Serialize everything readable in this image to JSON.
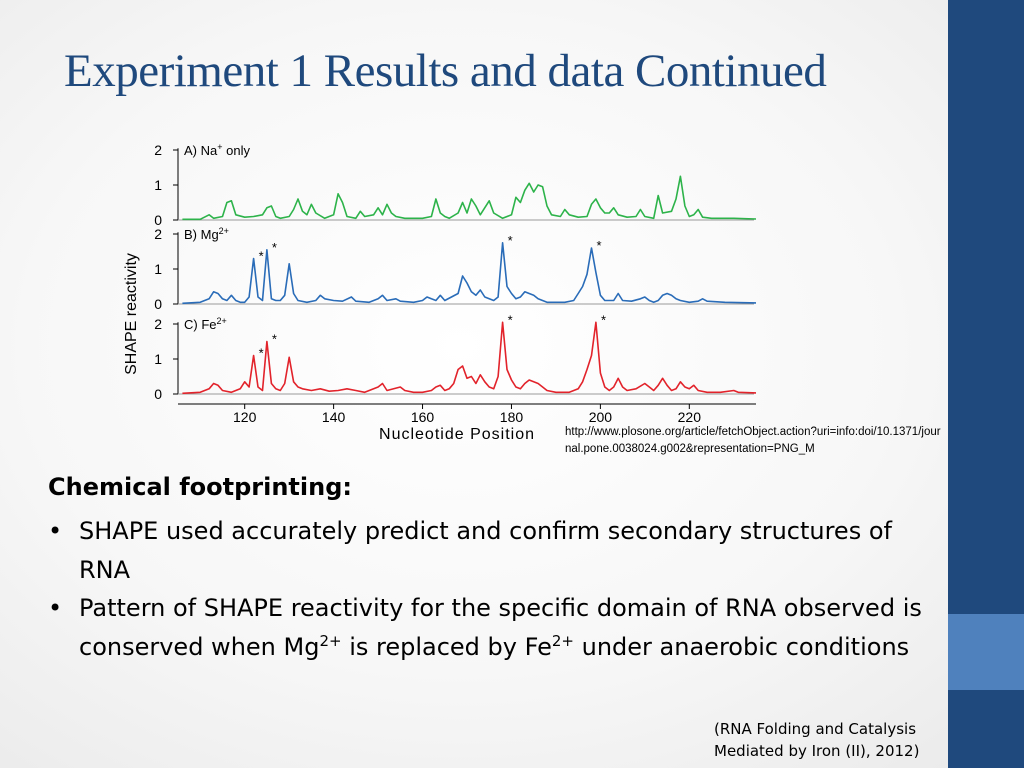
{
  "slide": {
    "title": "Experiment 1 Results and data Continued",
    "source_url": "http://www.plosone.org/article/fetchObject.action?uri=info:doi/10.1371/journal.pone.0038024.g002&representation=PNG_M",
    "heading": "Chemical footprinting:",
    "bullet1": "SHAPE used accurately predict and confirm secondary structures of RNA",
    "bullet2_part1": "Pattern of SHAPE reactivity for the specific domain of RNA observed is conserved when Mg",
    "bullet2_sup1": "2+",
    "bullet2_part2": " is replaced by Fe",
    "bullet2_sup2": "2+",
    "bullet2_part3": " under anaerobic conditions",
    "citation": "(RNA Folding and Catalysis Mediated by Iron (II), 2012)"
  },
  "colors": {
    "title": "#1f497d",
    "sidebar_dark": "#1f497d",
    "sidebar_light": "#4f81bd",
    "na_trace": "#2db34a",
    "mg_trace": "#2a6cb8",
    "fe_trace": "#e2232b"
  },
  "chart_data": {
    "type": "line",
    "xlabel": "Nucleotide Position",
    "ylabel": "SHAPE reactivity",
    "xlim": [
      105,
      235
    ],
    "x_ticks": [
      120,
      140,
      160,
      180,
      200,
      220
    ],
    "ylim": [
      0,
      2
    ],
    "y_ticks": [
      0,
      1,
      2
    ],
    "panels": [
      {
        "label_prefix": "A) Na",
        "label_sup": "+",
        "label_suffix": " only",
        "color": "#2db34a",
        "points": [
          [
            106,
            0.02
          ],
          [
            110,
            0.02
          ],
          [
            112,
            0.15
          ],
          [
            113,
            0.05
          ],
          [
            115,
            0.1
          ],
          [
            116,
            0.5
          ],
          [
            117,
            0.55
          ],
          [
            118,
            0.15
          ],
          [
            120,
            0.08
          ],
          [
            122,
            0.1
          ],
          [
            124,
            0.15
          ],
          [
            125,
            0.35
          ],
          [
            126,
            0.4
          ],
          [
            127,
            0.1
          ],
          [
            128,
            0.05
          ],
          [
            130,
            0.1
          ],
          [
            131,
            0.3
          ],
          [
            132,
            0.6
          ],
          [
            133,
            0.25
          ],
          [
            134,
            0.15
          ],
          [
            135,
            0.45
          ],
          [
            136,
            0.2
          ],
          [
            138,
            0.05
          ],
          [
            140,
            0.15
          ],
          [
            141,
            0.75
          ],
          [
            142,
            0.5
          ],
          [
            143,
            0.1
          ],
          [
            145,
            0.05
          ],
          [
            146,
            0.25
          ],
          [
            147,
            0.1
          ],
          [
            149,
            0.15
          ],
          [
            150,
            0.35
          ],
          [
            151,
            0.15
          ],
          [
            152,
            0.45
          ],
          [
            153,
            0.2
          ],
          [
            154,
            0.1
          ],
          [
            156,
            0.05
          ],
          [
            160,
            0.05
          ],
          [
            162,
            0.1
          ],
          [
            163,
            0.6
          ],
          [
            164,
            0.2
          ],
          [
            165,
            0.1
          ],
          [
            166,
            0.05
          ],
          [
            168,
            0.2
          ],
          [
            169,
            0.5
          ],
          [
            170,
            0.2
          ],
          [
            171,
            0.6
          ],
          [
            172,
            0.4
          ],
          [
            173,
            0.15
          ],
          [
            175,
            0.55
          ],
          [
            176,
            0.2
          ],
          [
            178,
            0.05
          ],
          [
            180,
            0.15
          ],
          [
            181,
            0.65
          ],
          [
            182,
            0.5
          ],
          [
            183,
            0.85
          ],
          [
            184,
            1.05
          ],
          [
            185,
            0.8
          ],
          [
            186,
            1.0
          ],
          [
            187,
            0.95
          ],
          [
            188,
            0.4
          ],
          [
            189,
            0.15
          ],
          [
            191,
            0.1
          ],
          [
            192,
            0.3
          ],
          [
            193,
            0.15
          ],
          [
            195,
            0.08
          ],
          [
            197,
            0.1
          ],
          [
            198,
            0.45
          ],
          [
            199,
            0.6
          ],
          [
            200,
            0.35
          ],
          [
            201,
            0.2
          ],
          [
            202,
            0.2
          ],
          [
            203,
            0.35
          ],
          [
            204,
            0.15
          ],
          [
            206,
            0.08
          ],
          [
            208,
            0.1
          ],
          [
            209,
            0.3
          ],
          [
            210,
            0.1
          ],
          [
            212,
            0.05
          ],
          [
            213,
            0.7
          ],
          [
            214,
            0.2
          ],
          [
            216,
            0.25
          ],
          [
            217,
            0.6
          ],
          [
            218,
            1.25
          ],
          [
            219,
            0.4
          ],
          [
            220,
            0.1
          ],
          [
            221,
            0.15
          ],
          [
            222,
            0.3
          ],
          [
            223,
            0.08
          ],
          [
            225,
            0.05
          ],
          [
            230,
            0.05
          ],
          [
            235,
            0.03
          ]
        ]
      },
      {
        "label_prefix": "B) Mg",
        "label_sup": "2+",
        "label_suffix": "",
        "color": "#2a6cb8",
        "points": [
          [
            106,
            0.02
          ],
          [
            110,
            0.05
          ],
          [
            112,
            0.15
          ],
          [
            113,
            0.35
          ],
          [
            114,
            0.3
          ],
          [
            115,
            0.15
          ],
          [
            116,
            0.1
          ],
          [
            117,
            0.25
          ],
          [
            118,
            0.1
          ],
          [
            119,
            0.05
          ],
          [
            120,
            0.05
          ],
          [
            121,
            0.2
          ],
          [
            122,
            1.3
          ],
          [
            123,
            0.2
          ],
          [
            124,
            0.1
          ],
          [
            125,
            1.55
          ],
          [
            126,
            0.15
          ],
          [
            127,
            0.1
          ],
          [
            128,
            0.1
          ],
          [
            129,
            0.25
          ],
          [
            130,
            1.15
          ],
          [
            131,
            0.3
          ],
          [
            132,
            0.1
          ],
          [
            134,
            0.05
          ],
          [
            136,
            0.1
          ],
          [
            137,
            0.25
          ],
          [
            138,
            0.15
          ],
          [
            140,
            0.1
          ],
          [
            142,
            0.08
          ],
          [
            144,
            0.2
          ],
          [
            145,
            0.08
          ],
          [
            148,
            0.05
          ],
          [
            150,
            0.15
          ],
          [
            151,
            0.25
          ],
          [
            152,
            0.1
          ],
          [
            154,
            0.15
          ],
          [
            155,
            0.08
          ],
          [
            158,
            0.05
          ],
          [
            160,
            0.1
          ],
          [
            161,
            0.2
          ],
          [
            162,
            0.15
          ],
          [
            163,
            0.1
          ],
          [
            164,
            0.25
          ],
          [
            165,
            0.1
          ],
          [
            168,
            0.3
          ],
          [
            169,
            0.8
          ],
          [
            170,
            0.6
          ],
          [
            171,
            0.35
          ],
          [
            172,
            0.25
          ],
          [
            173,
            0.4
          ],
          [
            174,
            0.2
          ],
          [
            176,
            0.1
          ],
          [
            177,
            0.2
          ],
          [
            178,
            1.75
          ],
          [
            179,
            0.5
          ],
          [
            180,
            0.3
          ],
          [
            181,
            0.15
          ],
          [
            182,
            0.2
          ],
          [
            183,
            0.35
          ],
          [
            184,
            0.3
          ],
          [
            185,
            0.25
          ],
          [
            186,
            0.15
          ],
          [
            188,
            0.05
          ],
          [
            192,
            0.05
          ],
          [
            194,
            0.1
          ],
          [
            195,
            0.3
          ],
          [
            196,
            0.5
          ],
          [
            197,
            0.85
          ],
          [
            198,
            1.6
          ],
          [
            199,
            0.9
          ],
          [
            200,
            0.25
          ],
          [
            201,
            0.1
          ],
          [
            203,
            0.1
          ],
          [
            204,
            0.3
          ],
          [
            205,
            0.1
          ],
          [
            207,
            0.08
          ],
          [
            209,
            0.15
          ],
          [
            210,
            0.2
          ],
          [
            211,
            0.1
          ],
          [
            212,
            0.05
          ],
          [
            213,
            0.1
          ],
          [
            214,
            0.25
          ],
          [
            215,
            0.3
          ],
          [
            216,
            0.25
          ],
          [
            217,
            0.15
          ],
          [
            218,
            0.1
          ],
          [
            220,
            0.05
          ],
          [
            222,
            0.08
          ],
          [
            223,
            0.15
          ],
          [
            224,
            0.08
          ],
          [
            228,
            0.05
          ],
          [
            235,
            0.03
          ]
        ]
      },
      {
        "label_prefix": "C) Fe",
        "label_sup": "2+",
        "label_suffix": "",
        "color": "#e2232b",
        "points": [
          [
            106,
            0.02
          ],
          [
            110,
            0.05
          ],
          [
            112,
            0.15
          ],
          [
            113,
            0.3
          ],
          [
            114,
            0.25
          ],
          [
            115,
            0.1
          ],
          [
            117,
            0.05
          ],
          [
            119,
            0.15
          ],
          [
            120,
            0.35
          ],
          [
            121,
            0.2
          ],
          [
            122,
            1.1
          ],
          [
            123,
            0.2
          ],
          [
            124,
            0.1
          ],
          [
            125,
            1.5
          ],
          [
            126,
            0.3
          ],
          [
            127,
            0.15
          ],
          [
            128,
            0.1
          ],
          [
            129,
            0.3
          ],
          [
            130,
            1.05
          ],
          [
            131,
            0.35
          ],
          [
            132,
            0.2
          ],
          [
            133,
            0.15
          ],
          [
            135,
            0.1
          ],
          [
            137,
            0.15
          ],
          [
            139,
            0.08
          ],
          [
            141,
            0.1
          ],
          [
            143,
            0.15
          ],
          [
            145,
            0.1
          ],
          [
            147,
            0.05
          ],
          [
            150,
            0.2
          ],
          [
            151,
            0.3
          ],
          [
            152,
            0.1
          ],
          [
            155,
            0.2
          ],
          [
            156,
            0.1
          ],
          [
            158,
            0.05
          ],
          [
            160,
            0.05
          ],
          [
            162,
            0.1
          ],
          [
            163,
            0.2
          ],
          [
            164,
            0.25
          ],
          [
            165,
            0.1
          ],
          [
            166,
            0.15
          ],
          [
            167,
            0.3
          ],
          [
            168,
            0.7
          ],
          [
            169,
            0.8
          ],
          [
            170,
            0.45
          ],
          [
            171,
            0.5
          ],
          [
            172,
            0.3
          ],
          [
            173,
            0.55
          ],
          [
            174,
            0.35
          ],
          [
            175,
            0.2
          ],
          [
            176,
            0.15
          ],
          [
            177,
            0.5
          ],
          [
            178,
            2.05
          ],
          [
            179,
            0.7
          ],
          [
            180,
            0.4
          ],
          [
            181,
            0.2
          ],
          [
            182,
            0.15
          ],
          [
            183,
            0.3
          ],
          [
            184,
            0.4
          ],
          [
            185,
            0.35
          ],
          [
            186,
            0.3
          ],
          [
            187,
            0.2
          ],
          [
            188,
            0.1
          ],
          [
            190,
            0.05
          ],
          [
            193,
            0.05
          ],
          [
            195,
            0.15
          ],
          [
            196,
            0.35
          ],
          [
            197,
            0.7
          ],
          [
            198,
            1.1
          ],
          [
            199,
            2.05
          ],
          [
            200,
            0.6
          ],
          [
            201,
            0.2
          ],
          [
            202,
            0.1
          ],
          [
            203,
            0.2
          ],
          [
            204,
            0.45
          ],
          [
            205,
            0.2
          ],
          [
            206,
            0.1
          ],
          [
            208,
            0.15
          ],
          [
            210,
            0.3
          ],
          [
            211,
            0.2
          ],
          [
            212,
            0.1
          ],
          [
            213,
            0.25
          ],
          [
            214,
            0.45
          ],
          [
            215,
            0.25
          ],
          [
            216,
            0.1
          ],
          [
            217,
            0.15
          ],
          [
            218,
            0.35
          ],
          [
            219,
            0.2
          ],
          [
            220,
            0.15
          ],
          [
            221,
            0.25
          ],
          [
            222,
            0.1
          ],
          [
            224,
            0.05
          ],
          [
            227,
            0.05
          ],
          [
            230,
            0.1
          ],
          [
            231,
            0.05
          ],
          [
            235,
            0.03
          ]
        ]
      }
    ],
    "annotations": [
      {
        "panel": 1,
        "x": 122,
        "text": "*"
      },
      {
        "panel": 1,
        "x": 125,
        "text": "*"
      },
      {
        "panel": 1,
        "x": 178,
        "text": "*"
      },
      {
        "panel": 1,
        "x": 198,
        "text": "*"
      },
      {
        "panel": 2,
        "x": 122,
        "text": "*"
      },
      {
        "panel": 2,
        "x": 125,
        "text": "*"
      },
      {
        "panel": 2,
        "x": 178,
        "text": "*"
      },
      {
        "panel": 2,
        "x": 199,
        "text": "*"
      }
    ]
  }
}
